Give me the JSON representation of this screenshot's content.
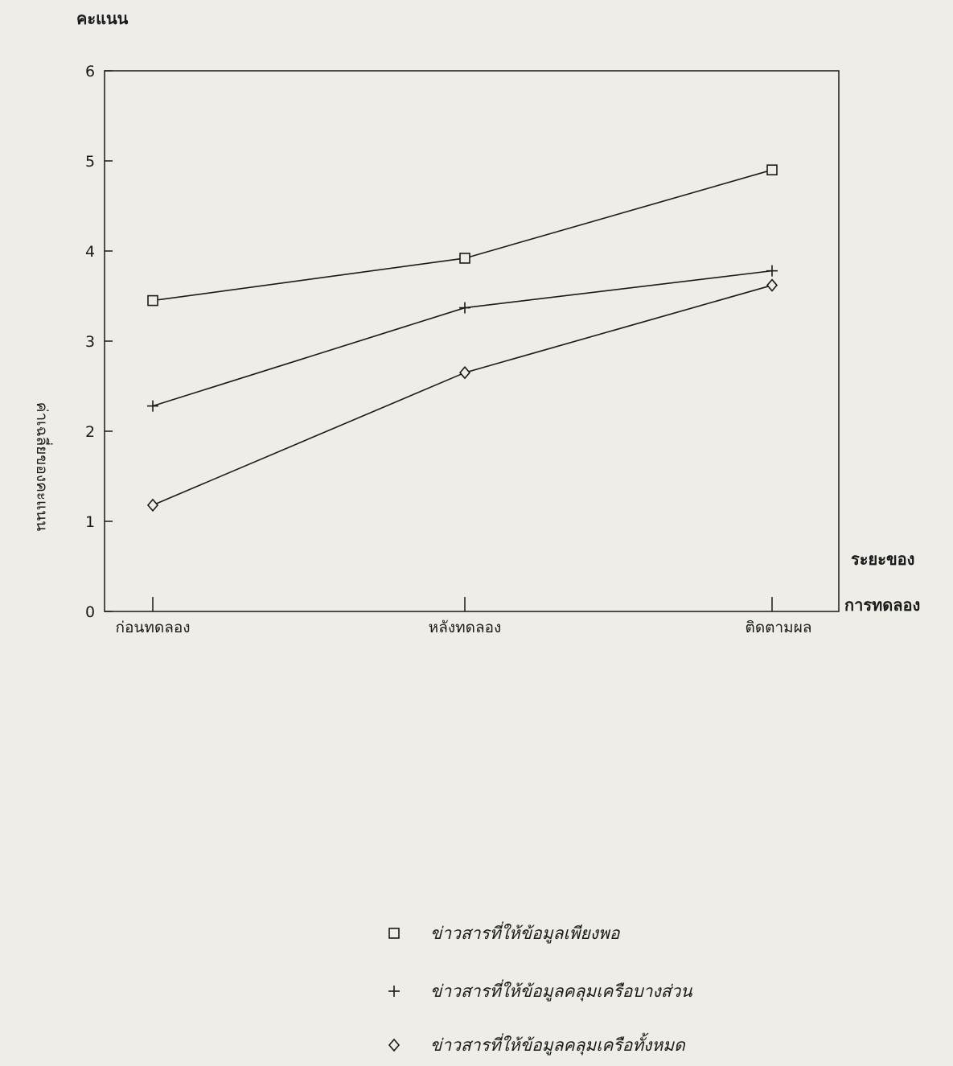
{
  "chart_data": {
    "type": "line",
    "title": "",
    "y_unit_label": "คะแนน",
    "ylabel": "ค่าเฉลี่ยของคะแนน",
    "xlabel_line1": "ระยะของ",
    "xlabel_line2": "การทดลอง",
    "categories": [
      "ก่อนทดลอง",
      "หลังทดลอง",
      "ติดตามผล"
    ],
    "ylim": [
      0,
      6
    ],
    "yticks": [
      "0",
      "1",
      "2",
      "3",
      "4",
      "5",
      "6"
    ],
    "grid": false,
    "legend_position": "bottom",
    "series": [
      {
        "name": "ข่าวสารที่ให้ข้อมูลเพียงพอ",
        "marker": "square",
        "values": [
          3.45,
          3.92,
          4.9
        ]
      },
      {
        "name": "ข่าวสารที่ให้ข้อมูลคลุมเครือบางส่วน",
        "marker": "plus",
        "values": [
          2.28,
          3.37,
          3.78
        ]
      },
      {
        "name": "ข่าวสารที่ให้ข้อมูลคลุมเครือทั้งหมด",
        "marker": "diamond",
        "values": [
          1.18,
          2.65,
          3.62
        ]
      }
    ]
  }
}
